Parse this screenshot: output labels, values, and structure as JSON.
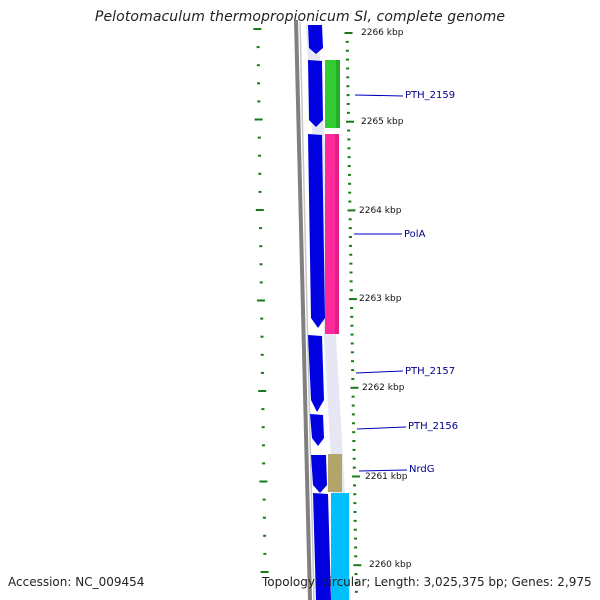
{
  "title": "Pelotomaculum thermopropionicum SI, complete genome",
  "footer": {
    "accession": "Accession: NC_009454",
    "topology": "Topology: circular; Length: 3,025,375 bp; Genes: 2,975"
  },
  "ticks": [
    "2266 kbp",
    "2265 kbp",
    "2264 kbp",
    "2263 kbp",
    "2262 kbp",
    "2261 kbp",
    "2260 kbp"
  ],
  "genes": [
    "PTH_2159",
    "PolA",
    "PTH_2157",
    "PTH_2156",
    "NrdG"
  ],
  "colors": {
    "strand": "#0000e0",
    "gc_ruler": "#1a7a1a",
    "backbone": "#808080",
    "label": "#00008b",
    "PTH_2159": "#33cc33",
    "PolA": "#ff2a9a",
    "NrdG": "#b3a46a",
    "next_gene": "#00bfff"
  }
}
